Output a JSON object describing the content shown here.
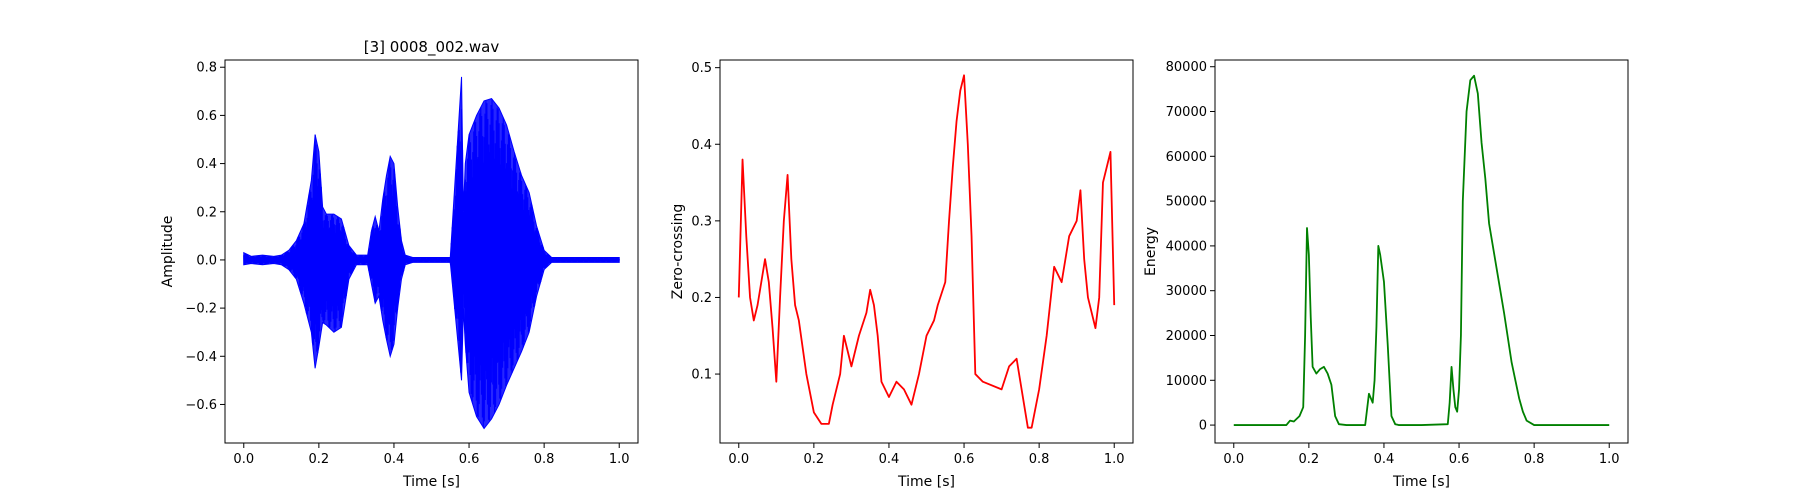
{
  "chart_data": [
    {
      "type": "line",
      "title": "[3] 0008_002.wav",
      "xlabel": "Time [s]",
      "ylabel": "Amplitude",
      "xlim": [
        -0.05,
        1.05
      ],
      "ylim": [
        -0.76,
        0.83
      ],
      "xticks": [
        0.0,
        0.2,
        0.4,
        0.6,
        0.8,
        1.0
      ],
      "xtick_labels": [
        "0.0",
        "0.2",
        "0.4",
        "0.6",
        "0.8",
        "1.0"
      ],
      "yticks": [
        -0.6,
        -0.4,
        -0.2,
        0.0,
        0.2,
        0.4,
        0.6,
        0.8
      ],
      "ytick_labels": [
        "−0.6",
        "−0.4",
        "−0.2",
        "0.0",
        "0.2",
        "0.4",
        "0.6",
        "0.8"
      ],
      "color": "#0000ff",
      "grid": false,
      "series": [
        {
          "style": "waveform-envelope",
          "x": [
            0.0,
            0.02,
            0.05,
            0.08,
            0.1,
            0.12,
            0.14,
            0.16,
            0.18,
            0.19,
            0.2,
            0.21,
            0.22,
            0.24,
            0.26,
            0.28,
            0.3,
            0.33,
            0.34,
            0.35,
            0.36,
            0.37,
            0.38,
            0.39,
            0.4,
            0.41,
            0.42,
            0.43,
            0.45,
            0.5,
            0.55,
            0.58,
            0.585,
            0.59,
            0.6,
            0.62,
            0.64,
            0.66,
            0.68,
            0.7,
            0.72,
            0.74,
            0.76,
            0.78,
            0.8,
            0.82,
            0.85,
            0.9,
            0.95,
            1.0
          ],
          "upper": [
            0.03,
            0.015,
            0.02,
            0.015,
            0.02,
            0.04,
            0.08,
            0.15,
            0.33,
            0.52,
            0.45,
            0.22,
            0.19,
            0.19,
            0.17,
            0.06,
            0.02,
            0.02,
            0.12,
            0.18,
            0.12,
            0.25,
            0.35,
            0.43,
            0.4,
            0.22,
            0.08,
            0.02,
            0.01,
            0.01,
            0.01,
            0.76,
            0.2,
            0.4,
            0.52,
            0.6,
            0.66,
            0.67,
            0.63,
            0.56,
            0.45,
            0.35,
            0.28,
            0.14,
            0.04,
            0.01,
            0.01,
            0.01,
            0.01,
            0.01
          ],
          "lower": [
            -0.02,
            -0.015,
            -0.02,
            -0.015,
            -0.02,
            -0.04,
            -0.08,
            -0.18,
            -0.3,
            -0.45,
            -0.36,
            -0.26,
            -0.27,
            -0.3,
            -0.28,
            -0.08,
            -0.02,
            -0.02,
            -0.1,
            -0.18,
            -0.15,
            -0.25,
            -0.33,
            -0.4,
            -0.35,
            -0.2,
            -0.08,
            -0.02,
            -0.01,
            -0.01,
            -0.01,
            -0.5,
            -0.2,
            -0.35,
            -0.55,
            -0.65,
            -0.7,
            -0.66,
            -0.6,
            -0.52,
            -0.45,
            -0.38,
            -0.3,
            -0.15,
            -0.04,
            -0.01,
            -0.01,
            -0.01,
            -0.01,
            -0.01
          ]
        }
      ]
    },
    {
      "type": "line",
      "title": "",
      "xlabel": "Time [s]",
      "ylabel": "Zero-crossing",
      "xlim": [
        -0.05,
        1.05
      ],
      "ylim": [
        0.01,
        0.51
      ],
      "xticks": [
        0.0,
        0.2,
        0.4,
        0.6,
        0.8,
        1.0
      ],
      "xtick_labels": [
        "0.0",
        "0.2",
        "0.4",
        "0.6",
        "0.8",
        "1.0"
      ],
      "yticks": [
        0.1,
        0.2,
        0.3,
        0.4,
        0.5
      ],
      "ytick_labels": [
        "0.1",
        "0.2",
        "0.3",
        "0.4",
        "0.5"
      ],
      "color": "#ff0000",
      "grid": false,
      "series": [
        {
          "x": [
            0.0,
            0.01,
            0.02,
            0.03,
            0.04,
            0.05,
            0.06,
            0.07,
            0.08,
            0.09,
            0.1,
            0.11,
            0.12,
            0.13,
            0.14,
            0.15,
            0.16,
            0.18,
            0.2,
            0.22,
            0.24,
            0.25,
            0.27,
            0.28,
            0.3,
            0.32,
            0.34,
            0.35,
            0.36,
            0.37,
            0.38,
            0.4,
            0.42,
            0.44,
            0.46,
            0.48,
            0.5,
            0.52,
            0.53,
            0.55,
            0.56,
            0.57,
            0.58,
            0.59,
            0.6,
            0.61,
            0.62,
            0.63,
            0.65,
            0.7,
            0.72,
            0.74,
            0.75,
            0.77,
            0.78,
            0.8,
            0.82,
            0.84,
            0.86,
            0.88,
            0.9,
            0.91,
            0.92,
            0.93,
            0.94,
            0.95,
            0.96,
            0.97,
            0.98,
            0.99,
            1.0
          ],
          "y": [
            0.2,
            0.38,
            0.28,
            0.2,
            0.17,
            0.19,
            0.22,
            0.25,
            0.22,
            0.16,
            0.09,
            0.2,
            0.3,
            0.36,
            0.25,
            0.19,
            0.17,
            0.1,
            0.05,
            0.035,
            0.035,
            0.06,
            0.1,
            0.15,
            0.11,
            0.15,
            0.18,
            0.21,
            0.19,
            0.15,
            0.09,
            0.07,
            0.09,
            0.08,
            0.06,
            0.1,
            0.15,
            0.17,
            0.19,
            0.22,
            0.3,
            0.37,
            0.43,
            0.47,
            0.49,
            0.4,
            0.28,
            0.1,
            0.09,
            0.08,
            0.11,
            0.12,
            0.09,
            0.03,
            0.03,
            0.08,
            0.15,
            0.24,
            0.22,
            0.28,
            0.3,
            0.34,
            0.25,
            0.2,
            0.18,
            0.16,
            0.2,
            0.35,
            0.37,
            0.39,
            0.19
          ]
        }
      ]
    },
    {
      "type": "line",
      "title": "",
      "xlabel": "Time [s]",
      "ylabel": "Energy",
      "xlim": [
        -0.05,
        1.05
      ],
      "ylim": [
        -4000,
        81500
      ],
      "xticks": [
        0.0,
        0.2,
        0.4,
        0.6,
        0.8,
        1.0
      ],
      "xtick_labels": [
        "0.0",
        "0.2",
        "0.4",
        "0.6",
        "0.8",
        "1.0"
      ],
      "yticks": [
        0,
        10000,
        20000,
        30000,
        40000,
        50000,
        60000,
        70000,
        80000
      ],
      "ytick_labels": [
        "0",
        "10000",
        "20000",
        "30000",
        "40000",
        "50000",
        "60000",
        "70000",
        "80000"
      ],
      "color": "#008000",
      "grid": false,
      "series": [
        {
          "x": [
            0.0,
            0.14,
            0.15,
            0.16,
            0.175,
            0.185,
            0.19,
            0.195,
            0.2,
            0.205,
            0.21,
            0.22,
            0.23,
            0.24,
            0.25,
            0.26,
            0.27,
            0.28,
            0.3,
            0.35,
            0.36,
            0.365,
            0.37,
            0.375,
            0.38,
            0.385,
            0.39,
            0.395,
            0.4,
            0.41,
            0.42,
            0.43,
            0.44,
            0.5,
            0.57,
            0.575,
            0.58,
            0.585,
            0.59,
            0.595,
            0.6,
            0.605,
            0.61,
            0.62,
            0.63,
            0.64,
            0.65,
            0.66,
            0.67,
            0.68,
            0.7,
            0.72,
            0.74,
            0.76,
            0.77,
            0.78,
            0.8,
            0.85,
            0.9,
            1.0
          ],
          "y": [
            0,
            0,
            1000,
            800,
            2000,
            4000,
            20000,
            44000,
            38000,
            24000,
            13000,
            11500,
            12500,
            13000,
            11500,
            9000,
            2000,
            200,
            0,
            0,
            7000,
            6000,
            5000,
            10000,
            22000,
            40000,
            38000,
            35000,
            32000,
            18000,
            2000,
            200,
            0,
            0,
            200,
            5000,
            13000,
            8000,
            4000,
            3000,
            8000,
            20000,
            50000,
            70000,
            77000,
            78000,
            74000,
            63000,
            55000,
            45000,
            35000,
            25000,
            14000,
            6000,
            3000,
            1000,
            0,
            0,
            0,
            0
          ]
        }
      ]
    }
  ]
}
